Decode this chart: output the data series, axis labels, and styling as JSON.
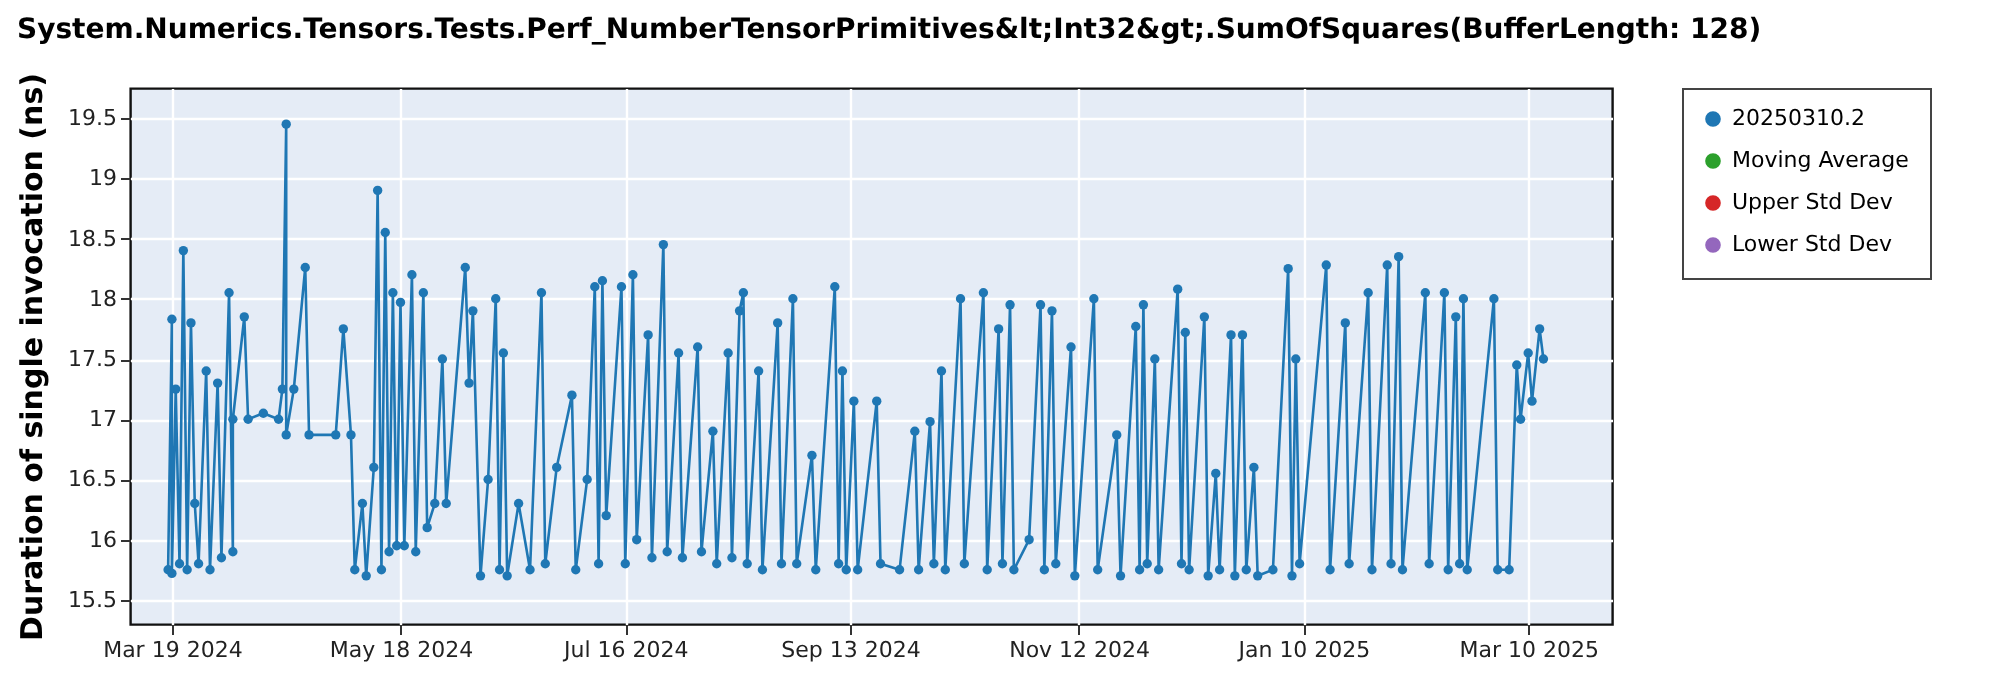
{
  "chart_data": {
    "type": "line",
    "title": "System.Numerics.Tensors.Tests.Perf_NumberTensorPrimitives&lt;Int32&gt;.SumOfSquares(BufferLength: 128)",
    "ylabel": "Duration of single invocation (ns)",
    "xlim": [
      "2024-03-08",
      "2025-04-01"
    ],
    "xticks": [
      {
        "value": "2024-03-19",
        "label": "Mar 19 2024"
      },
      {
        "value": "2024-05-18",
        "label": "May 18 2024"
      },
      {
        "value": "2024-07-16",
        "label": "Jul 16 2024"
      },
      {
        "value": "2024-09-13",
        "label": "Sep 13 2024"
      },
      {
        "value": "2024-11-12",
        "label": "Nov 12 2024"
      },
      {
        "value": "2025-01-10",
        "label": "Jan 10 2025"
      },
      {
        "value": "2025-03-10",
        "label": "Mar 10 2025"
      }
    ],
    "ylim": [
      15.3,
      19.75
    ],
    "yticks": [
      15.5,
      16,
      16.5,
      17,
      17.5,
      18,
      18.5,
      19,
      19.5
    ],
    "grid": true,
    "legend": "right",
    "marker": "circle",
    "line_style": "solid",
    "series": [
      {
        "name": "20250310.2",
        "color": "#1f77b4",
        "x": [
          "2024-03-18",
          "2024-03-19",
          "2024-03-19",
          "2024-03-20",
          "2024-03-21",
          "2024-03-22",
          "2024-03-23",
          "2024-03-24",
          "2024-03-25",
          "2024-03-26",
          "2024-03-28",
          "2024-03-29",
          "2024-03-31",
          "2024-04-01",
          "2024-04-03",
          "2024-04-04",
          "2024-04-04",
          "2024-04-07",
          "2024-04-08",
          "2024-04-12",
          "2024-04-16",
          "2024-04-17",
          "2024-04-18",
          "2024-04-18",
          "2024-04-20",
          "2024-04-23",
          "2024-04-24",
          "2024-05-01",
          "2024-05-03",
          "2024-05-05",
          "2024-05-06",
          "2024-05-08",
          "2024-05-09",
          "2024-05-11",
          "2024-05-12",
          "2024-05-13",
          "2024-05-14",
          "2024-05-15",
          "2024-05-16",
          "2024-05-17",
          "2024-05-18",
          "2024-05-19",
          "2024-05-21",
          "2024-05-22",
          "2024-05-24",
          "2024-05-25",
          "2024-05-27",
          "2024-05-29",
          "2024-05-30",
          "2024-06-04",
          "2024-06-05",
          "2024-06-06",
          "2024-06-08",
          "2024-06-10",
          "2024-06-12",
          "2024-06-13",
          "2024-06-14",
          "2024-06-15",
          "2024-06-18",
          "2024-06-21",
          "2024-06-24",
          "2024-06-25",
          "2024-06-28",
          "2024-07-02",
          "2024-07-03",
          "2024-07-06",
          "2024-07-08",
          "2024-07-09",
          "2024-07-10",
          "2024-07-11",
          "2024-07-15",
          "2024-07-16",
          "2024-07-18",
          "2024-07-19",
          "2024-07-22",
          "2024-07-23",
          "2024-07-26",
          "2024-07-27",
          "2024-07-30",
          "2024-07-31",
          "2024-08-04",
          "2024-08-05",
          "2024-08-08",
          "2024-08-09",
          "2024-08-12",
          "2024-08-13",
          "2024-08-15",
          "2024-08-16",
          "2024-08-17",
          "2024-08-20",
          "2024-08-21",
          "2024-08-25",
          "2024-08-26",
          "2024-08-29",
          "2024-08-30",
          "2024-09-03",
          "2024-09-04",
          "2024-09-09",
          "2024-09-10",
          "2024-09-11",
          "2024-09-12",
          "2024-09-14",
          "2024-09-15",
          "2024-09-20",
          "2024-09-21",
          "2024-09-26",
          "2024-09-30",
          "2024-10-01",
          "2024-10-04",
          "2024-10-05",
          "2024-10-07",
          "2024-10-08",
          "2024-10-12",
          "2024-10-13",
          "2024-10-18",
          "2024-10-19",
          "2024-10-22",
          "2024-10-23",
          "2024-10-25",
          "2024-10-26",
          "2024-10-30",
          "2024-11-02",
          "2024-11-03",
          "2024-11-05",
          "2024-11-06",
          "2024-11-10",
          "2024-11-11",
          "2024-11-16",
          "2024-11-17",
          "2024-11-22",
          "2024-11-23",
          "2024-11-27",
          "2024-11-28",
          "2024-11-29",
          "2024-11-30",
          "2024-12-02",
          "2024-12-03",
          "2024-12-08",
          "2024-12-09",
          "2024-12-10",
          "2024-12-11",
          "2024-12-15",
          "2024-12-16",
          "2024-12-18",
          "2024-12-19",
          "2024-12-22",
          "2024-12-23",
          "2024-12-25",
          "2024-12-26",
          "2024-12-28",
          "2024-12-29",
          "2025-01-02",
          "2025-01-06",
          "2025-01-07",
          "2025-01-08",
          "2025-01-09",
          "2025-01-16",
          "2025-01-17",
          "2025-01-21",
          "2025-01-22",
          "2025-01-27",
          "2025-01-28",
          "2025-02-01",
          "2025-02-02",
          "2025-02-04",
          "2025-02-05",
          "2025-02-11",
          "2025-02-12",
          "2025-02-16",
          "2025-02-17",
          "2025-02-19",
          "2025-02-20",
          "2025-02-21",
          "2025-02-22",
          "2025-03-01",
          "2025-03-02",
          "2025-03-05",
          "2025-03-07",
          "2025-03-08",
          "2025-03-10",
          "2025-03-11",
          "2025-03-13",
          "2025-03-14"
        ],
        "values": [
          15.75,
          17.83,
          15.72,
          17.25,
          15.8,
          18.4,
          15.75,
          17.8,
          16.3,
          15.8,
          17.4,
          15.75,
          17.3,
          15.85,
          18.05,
          15.9,
          17.0,
          17.85,
          17.0,
          17.05,
          17.0,
          17.25,
          19.45,
          16.87,
          17.25,
          18.26,
          16.87,
          16.87,
          17.75,
          16.87,
          15.75,
          16.3,
          15.7,
          16.6,
          18.9,
          15.75,
          18.55,
          15.9,
          18.05,
          15.95,
          17.97,
          15.95,
          18.2,
          15.9,
          18.05,
          16.1,
          16.3,
          17.5,
          16.3,
          18.26,
          17.3,
          17.9,
          15.7,
          16.5,
          18.0,
          15.75,
          17.55,
          15.7,
          16.3,
          15.75,
          18.05,
          15.8,
          16.6,
          17.2,
          15.75,
          16.5,
          18.1,
          15.8,
          18.15,
          16.2,
          18.1,
          15.8,
          18.2,
          16.0,
          17.7,
          15.85,
          18.45,
          15.9,
          17.55,
          15.85,
          17.6,
          15.9,
          16.9,
          15.8,
          17.55,
          15.85,
          17.9,
          18.05,
          15.8,
          17.4,
          15.75,
          17.8,
          15.8,
          18.0,
          15.8,
          16.7,
          15.75,
          18.1,
          15.8,
          17.4,
          15.75,
          17.15,
          15.75,
          17.15,
          15.8,
          15.75,
          16.9,
          15.75,
          16.98,
          15.8,
          17.4,
          15.75,
          18.0,
          15.8,
          18.05,
          15.75,
          17.75,
          15.8,
          17.95,
          15.75,
          16.0,
          17.95,
          15.75,
          17.9,
          15.8,
          17.6,
          15.7,
          18.0,
          15.75,
          16.87,
          15.7,
          17.77,
          15.75,
          17.95,
          15.8,
          17.5,
          15.75,
          18.08,
          15.8,
          17.72,
          15.75,
          17.85,
          15.7,
          16.55,
          15.75,
          17.7,
          15.7,
          17.7,
          15.75,
          16.6,
          15.7,
          15.75,
          18.25,
          15.7,
          17.5,
          15.8,
          18.28,
          15.75,
          17.8,
          15.8,
          18.05,
          15.75,
          18.28,
          15.8,
          18.35,
          15.75,
          18.05,
          15.8,
          18.05,
          15.75,
          17.85,
          15.8,
          18.0,
          15.75,
          18.0,
          15.75,
          15.75,
          17.45,
          17.0,
          17.55,
          17.15,
          17.75,
          17.5
        ]
      },
      {
        "name": "Moving Average",
        "color": "#2ca02c"
      },
      {
        "name": "Upper Std Dev",
        "color": "#d62728"
      },
      {
        "name": "Lower Std Dev",
        "color": "#9467bd"
      }
    ]
  }
}
